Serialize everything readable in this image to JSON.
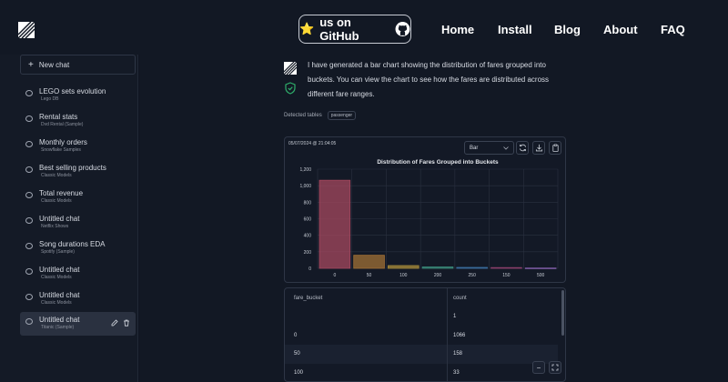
{
  "header": {
    "github_label": "us on GitHub",
    "nav": [
      "Home",
      "Install",
      "Blog",
      "About",
      "FAQ"
    ]
  },
  "sidebar": {
    "new_chat_label": "New chat",
    "items": [
      {
        "title": "LEGO sets evolution",
        "sub": "Lego DB"
      },
      {
        "title": "Rental stats",
        "sub": "Dvd Rental (Sample)"
      },
      {
        "title": "Monthly orders",
        "sub": "Snowflake Samples"
      },
      {
        "title": "Best selling products",
        "sub": "Classic Models"
      },
      {
        "title": "Total revenue",
        "sub": "Classic Models"
      },
      {
        "title": "Untitled chat",
        "sub": "Netflix Shows"
      },
      {
        "title": "Song durations EDA",
        "sub": "Spotify (Sample)"
      },
      {
        "title": "Untitled chat",
        "sub": "Classic Models"
      },
      {
        "title": "Untitled chat",
        "sub": "Classic Models"
      },
      {
        "title": "Untitled chat",
        "sub": "Titanic (Sample)"
      }
    ]
  },
  "message": {
    "text": "I have generated a bar chart showing the distribution of fares grouped into buckets. You can view the chart to see how the fares are distributed across different fare ranges.",
    "detected_label": "Detected tables",
    "tag": "passenger"
  },
  "chart_card": {
    "timestamp": "05/07/2024 @ 21:04:05",
    "chart_type_label": "Bar"
  },
  "chart_data": {
    "type": "bar",
    "title": "Distribution of Fares Grouped into Buckets",
    "categories": [
      "0",
      "50",
      "100",
      "200",
      "250",
      "150",
      "500"
    ],
    "values": [
      1066,
      158,
      33,
      17,
      11,
      9,
      4
    ],
    "colors": [
      "#a5485f",
      "#a07035",
      "#a58a3a",
      "#3a8a7a",
      "#3a6fa0",
      "#8a3f6a",
      "#7a5aa0"
    ],
    "ylim": [
      0,
      1200
    ],
    "yticks": [
      "0",
      "200",
      "400",
      "600",
      "800",
      "1,000",
      "1,200"
    ],
    "grid": true
  },
  "table": {
    "headers": [
      "fare_bucket",
      "count"
    ],
    "rows": [
      [
        "",
        "1"
      ],
      [
        "0",
        "1066"
      ],
      [
        "50",
        "158"
      ],
      [
        "100",
        "33"
      ]
    ]
  },
  "colors": {
    "background": "#0f1420",
    "sidebar": "#141a26",
    "active_item": "#2a3140",
    "accent_star": "#f3c614",
    "shield": "#2fae6b"
  }
}
